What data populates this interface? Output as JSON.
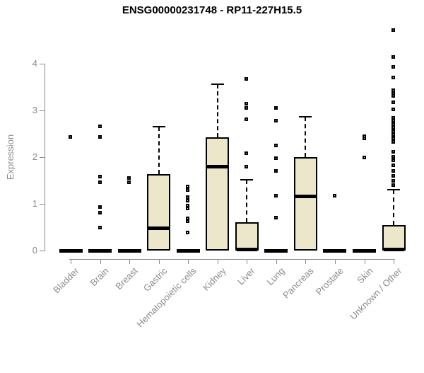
{
  "colors": {
    "box_fill": "#ECE7CA",
    "box_border": "#000000",
    "axis_gray": "#8b8b8b",
    "title_color": "#000000",
    "background": "#ffffff"
  },
  "chart_data": {
    "type": "boxplot",
    "title": "ENSG00000231748 - RP11-227H15.5",
    "xlabel": "",
    "ylabel": "Expression",
    "ylim": [
      0,
      4.8
    ],
    "yticks": [
      0,
      1,
      2,
      3,
      4
    ],
    "grid": "off",
    "legend": "none",
    "categories": [
      "Bladder",
      "Brain",
      "Breast",
      "Gastric",
      "Hematopoietic cells",
      "Kidney",
      "Liver",
      "Lung",
      "Pancreas",
      "Prostate",
      "Skin",
      "Unknown / Other"
    ],
    "series": [
      {
        "category": "Bladder",
        "q1": 0,
        "median": 0,
        "q3": 0,
        "whisker_low": 0,
        "whisker_high": 0,
        "outliers": [
          2.42
        ]
      },
      {
        "category": "Brain",
        "q1": 0,
        "median": 0,
        "q3": 0,
        "whisker_low": 0,
        "whisker_high": 0,
        "outliers": [
          2.65,
          2.42,
          1.58,
          1.46,
          0.93,
          0.8,
          0.48
        ]
      },
      {
        "category": "Breast",
        "q1": 0,
        "median": 0,
        "q3": 0,
        "whisker_low": 0,
        "whisker_high": 0,
        "outliers": [
          1.55,
          1.46
        ]
      },
      {
        "category": "Gastric",
        "q1": 0,
        "median": 0.49,
        "q3": 1.63,
        "whisker_low": 0,
        "whisker_high": 2.65,
        "outliers": []
      },
      {
        "category": "Hematopoietic cells",
        "q1": 0,
        "median": 0,
        "q3": 0,
        "whisker_low": 0,
        "whisker_high": 0,
        "outliers": [
          1.36,
          1.29,
          1.13,
          1.06,
          0.95,
          0.89,
          0.68,
          0.62,
          0.38
        ]
      },
      {
        "category": "Kidney",
        "q1": 0,
        "median": 1.81,
        "q3": 2.43,
        "whisker_low": 0,
        "whisker_high": 3.56,
        "outliers": []
      },
      {
        "category": "Liver",
        "q1": 0,
        "median": 0.03,
        "q3": 0.61,
        "whisker_low": 0,
        "whisker_high": 1.52,
        "outliers": [
          3.66,
          3.13,
          3.05,
          2.8,
          2.08,
          1.79
        ]
      },
      {
        "category": "Lung",
        "q1": 0,
        "median": 0,
        "q3": 0,
        "whisker_low": 0,
        "whisker_high": 0,
        "outliers": [
          3.05,
          2.77,
          2.24,
          1.97,
          1.7,
          1.17,
          0.69
        ]
      },
      {
        "category": "Pancreas",
        "q1": 0,
        "median": 1.16,
        "q3": 2.0,
        "whisker_low": 0,
        "whisker_high": 2.86,
        "outliers": []
      },
      {
        "category": "Prostate",
        "q1": 0,
        "median": 0,
        "q3": 0,
        "whisker_low": 0,
        "whisker_high": 0,
        "outliers": [
          1.17
        ]
      },
      {
        "category": "Skin",
        "q1": 0,
        "median": 0,
        "q3": 0,
        "whisker_low": 0,
        "whisker_high": 0,
        "outliers": [
          2.44,
          2.39,
          1.98
        ]
      },
      {
        "category": "Unknown / Other",
        "q1": 0,
        "median": 0.03,
        "q3": 0.55,
        "whisker_low": 0,
        "whisker_high": 1.31,
        "outliers": [
          4.71,
          4.13,
          3.93,
          3.7,
          3.42,
          3.36,
          3.3,
          3.16,
          3.02,
          2.84,
          2.77,
          2.7,
          2.62,
          2.55,
          2.47,
          2.4,
          2.32,
          2.1,
          2.0,
          1.92,
          1.82,
          1.7,
          1.59,
          1.48,
          1.4
        ]
      }
    ]
  }
}
